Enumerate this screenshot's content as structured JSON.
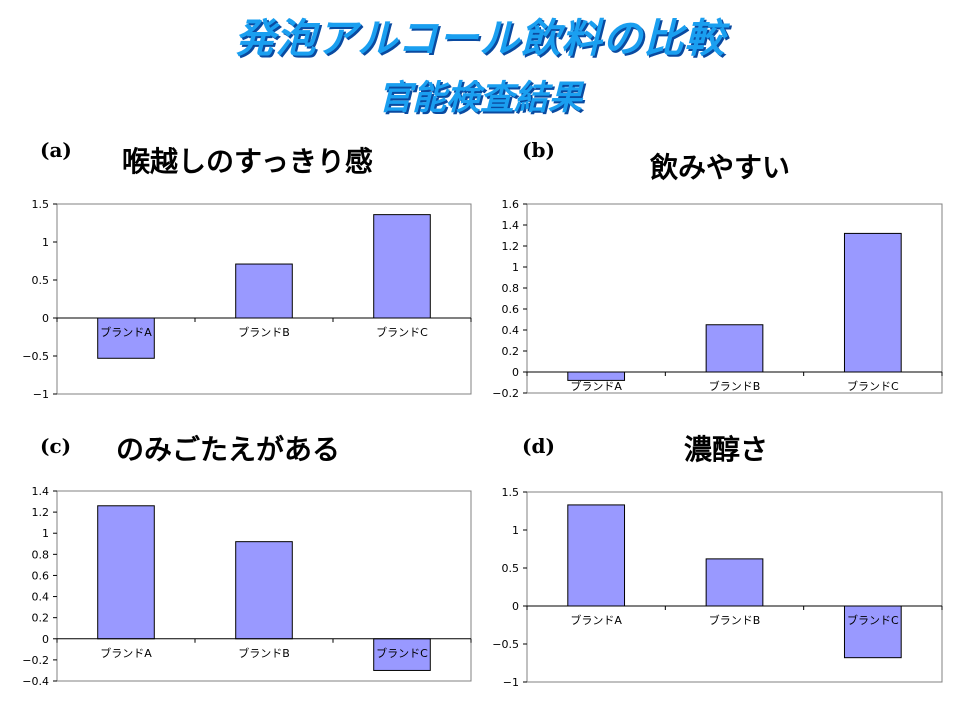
{
  "slide": {
    "title": "発泡アルコール飲料の比較",
    "subtitle": "官能検査結果"
  },
  "colors": {
    "bar": "#9999ff",
    "bar_stroke": "#000000",
    "title": "#1a9ff0"
  },
  "chart_data": [
    {
      "label": "(a)",
      "type": "bar",
      "title": "喉越しのすっきり感",
      "categories": [
        "ブランドA",
        "ブランドB",
        "ブランドC"
      ],
      "values": [
        -0.53,
        0.71,
        1.36
      ],
      "yticks": [
        "1.5",
        "1",
        "0.5",
        "0",
        "−0.5",
        "−1"
      ],
      "ylim": [
        -1,
        1.5
      ],
      "grid": false
    },
    {
      "label": "(b)",
      "type": "bar",
      "title": "飲みやすい",
      "categories": [
        "ブランドA",
        "ブランドB",
        "ブランドC"
      ],
      "values": [
        -0.08,
        0.45,
        1.32
      ],
      "yticks": [
        "1.6",
        "1.4",
        "1.2",
        "1",
        "0.8",
        "0.6",
        "0.4",
        "0.2",
        "0",
        "−0.2"
      ],
      "ylim": [
        -0.2,
        1.6
      ],
      "grid": false
    },
    {
      "label": "(c)",
      "type": "bar",
      "title": "のみごたえがある",
      "categories": [
        "ブランドA",
        "ブランドB",
        "ブランドC"
      ],
      "values": [
        1.26,
        0.92,
        -0.3
      ],
      "yticks": [
        "1.4",
        "1.2",
        "1",
        "0.8",
        "0.6",
        "0.4",
        "0.2",
        "0",
        "−0.2",
        "−0.4"
      ],
      "ylim": [
        -0.4,
        1.4
      ],
      "grid": false
    },
    {
      "label": "(d)",
      "type": "bar",
      "title": "濃醇さ",
      "categories": [
        "ブランドA",
        "ブランドB",
        "ブランドC"
      ],
      "values": [
        1.33,
        0.62,
        -0.68
      ],
      "yticks": [
        "1.5",
        "1",
        "0.5",
        "0",
        "−0.5",
        "−1"
      ],
      "ylim": [
        -1,
        1.5
      ],
      "grid": false
    }
  ]
}
